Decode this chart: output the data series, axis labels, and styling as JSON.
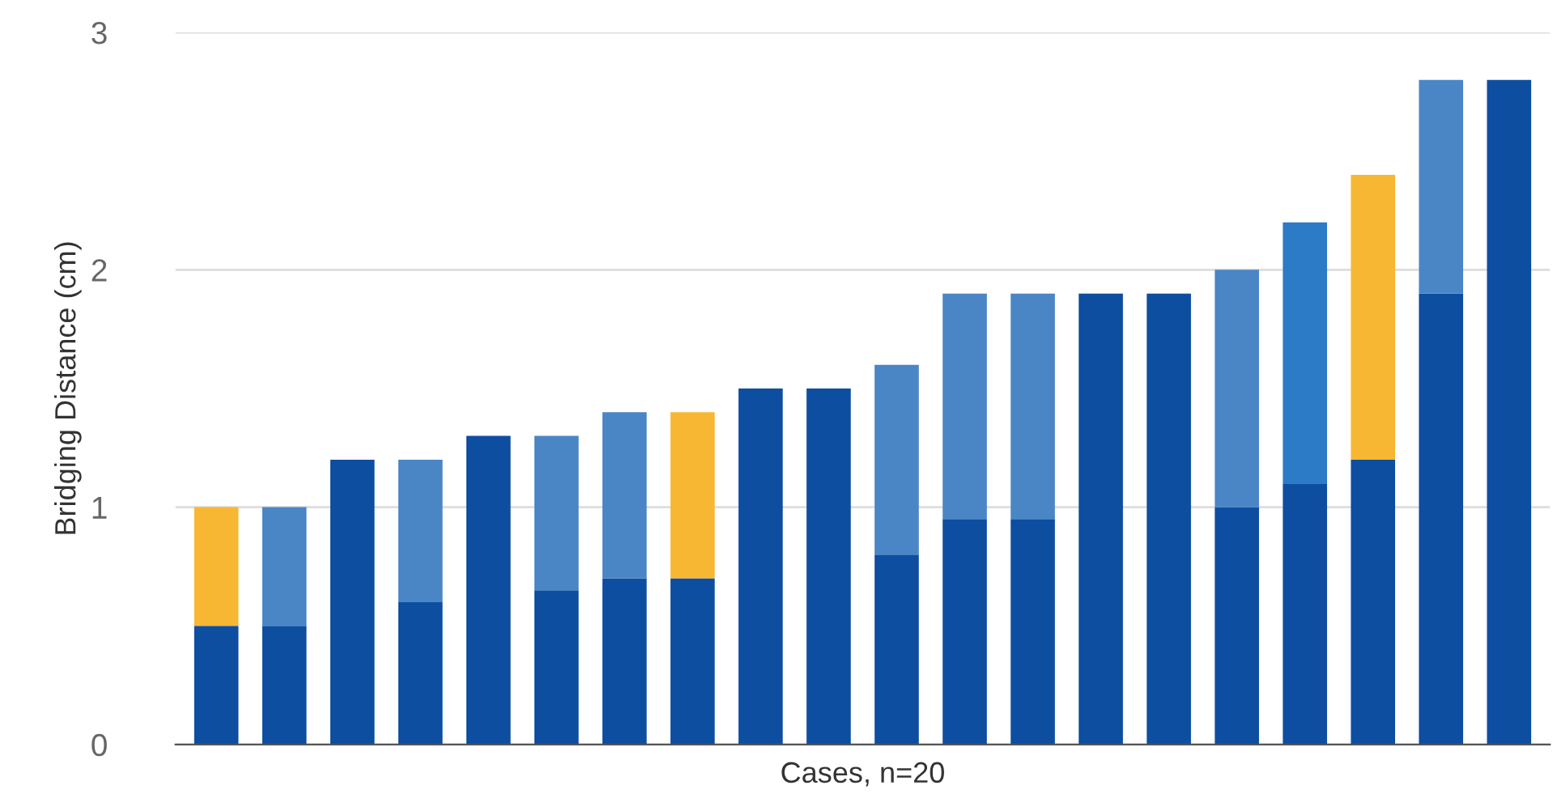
{
  "chart_data": {
    "type": "bar",
    "stacked": true,
    "xlabel": "Cases, n=20",
    "ylabel": "Bridging Distance (cm)",
    "categories": [
      null,
      null,
      null,
      null,
      null,
      null,
      null,
      null,
      null,
      null,
      null,
      null,
      null,
      null,
      null,
      null,
      null,
      null,
      null,
      null
    ],
    "series": [
      {
        "color": "#0d4ea1",
        "values": [
          0.5,
          0.5,
          1.2,
          0.6,
          1.3,
          0.65,
          0.7,
          0.7,
          1.5,
          1.5,
          0.8,
          0.95,
          0.95,
          1.9,
          1.9,
          1.0,
          1.1,
          1.2,
          1.9,
          2.8
        ]
      },
      {
        "color": "#4a86c6",
        "colors": [
          "#f8b733",
          "#4a86c6",
          "#4a86c6",
          "#4a86c6",
          "#4a86c6",
          "#4a86c6",
          "#4a86c6",
          "#f8b733",
          "#4a86c6",
          "#4a86c6",
          "#4a86c6",
          "#4a86c6",
          "#4a86c6",
          "#4a86c6",
          "#4a86c6",
          "#4a86c6",
          "#2b7bc6",
          "#f8b733",
          "#4a86c6",
          "#4a86c6"
        ],
        "values": [
          0.5,
          0.5,
          null,
          0.6,
          null,
          0.65,
          0.7,
          0.7,
          null,
          null,
          0.8,
          0.95,
          0.95,
          null,
          null,
          1.0,
          1.1,
          1.2,
          0.9,
          null
        ]
      }
    ],
    "ylim": [
      0,
      3
    ],
    "yticks": [
      0,
      1,
      2,
      3
    ],
    "grid": "y",
    "legend": false
  }
}
